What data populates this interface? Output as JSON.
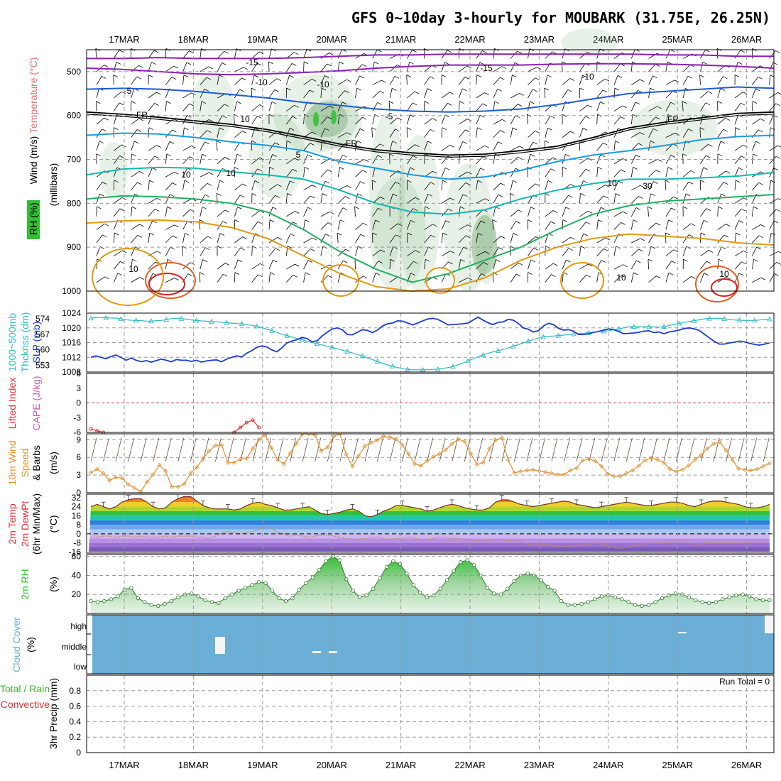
{
  "title": "GFS 0~10day 3-hourly for MOUBARK (31.75E, 26.25N)",
  "dates": [
    "17MAR",
    "18MAR",
    "19MAR",
    "20MAR",
    "21MAR",
    "22MAR",
    "23MAR",
    "24MAR",
    "25MAR",
    "26MAR"
  ],
  "colors": {
    "sounding_wind": "#000000",
    "temp_neg15": "#8a1fb0",
    "temp_neg10": "#8a1fb0",
    "temp_neg5": "#1e5bd0",
    "temp_fr": "#000000",
    "temp_5": "#1a9be0",
    "temp_10": "#10b8b0",
    "temp_15": "#20b060",
    "temp_20": "#e09a10",
    "temp_25": "#e06020",
    "temp_30": "#e02020",
    "rh_shade": "#7ab07a",
    "slp": "#1c3bd0",
    "thickness": "#30b8c0",
    "lifted_index": "#e03030",
    "cape": "#c060c0",
    "wind10m": "#e09030",
    "rh2m": "#40c040",
    "cloud": "#6baed6",
    "precip_total": "#30c030",
    "precip_conv": "#e03030"
  },
  "chart_data": [
    {
      "type": "heatmap",
      "panel": "sounding",
      "ylabel_parts": [
        "Wind (m/s)",
        "Temperature (°C)",
        "RH (%)",
        "(millibars)"
      ],
      "yticks": [
        500,
        600,
        700,
        800,
        900,
        1000
      ],
      "ylim": [
        450,
        1000
      ],
      "isotherm_labels": [
        "-15",
        "-15",
        "-10",
        "-10",
        "-10",
        "-5",
        "-5",
        "FR",
        "FR",
        "FR",
        "5",
        "10",
        "10"
      ],
      "rh_labels": [
        "10",
        "10",
        "10",
        "10",
        "30",
        "10"
      ],
      "isotherms": [
        {
          "temp": -15,
          "p": [
            470,
            470,
            468,
            470,
            470,
            470,
            468,
            465,
            462,
            462,
            460,
            460,
            460,
            460,
            460,
            460,
            462,
            462,
            465,
            465
          ]
        },
        {
          "temp": -10,
          "p": [
            492,
            495,
            500,
            505,
            507,
            505,
            502,
            498,
            492,
            488,
            485,
            485,
            485,
            483,
            482,
            482,
            483,
            485,
            488,
            492
          ]
        },
        {
          "temp": -5,
          "p": [
            540,
            538,
            540,
            545,
            552,
            560,
            570,
            577,
            585,
            590,
            592,
            590,
            585,
            575,
            562,
            550,
            545,
            540,
            535,
            538
          ]
        },
        {
          "temp": 0,
          "p": [
            592,
            597,
            604,
            612,
            620,
            632,
            648,
            665,
            678,
            685,
            690,
            688,
            680,
            670,
            650,
            628,
            615,
            605,
            595,
            592
          ]
        },
        {
          "temp": 5,
          "p": [
            645,
            640,
            642,
            650,
            660,
            668,
            680,
            705,
            720,
            735,
            745,
            740,
            725,
            705,
            690,
            680,
            668,
            655,
            648,
            645
          ]
        },
        {
          "temp": 10,
          "p": [
            735,
            722,
            718,
            720,
            728,
            735,
            745,
            770,
            800,
            820,
            825,
            815,
            790,
            770,
            755,
            745,
            745,
            742,
            738,
            730
          ]
        },
        {
          "temp": 15,
          "p": [
            790,
            783,
            785,
            790,
            800,
            820,
            860,
            910,
            950,
            980,
            960,
            930,
            900,
            860,
            825,
            805,
            795,
            790,
            785,
            780
          ]
        },
        {
          "temp": 20,
          "p": [
            845,
            840,
            838,
            842,
            855,
            880,
            920,
            960,
            990,
            1000,
            995,
            970,
            930,
            900,
            880,
            870,
            875,
            880,
            890,
            895
          ]
        }
      ]
    },
    {
      "type": "line",
      "panel": "slp_thickness",
      "ylabel": "1000~500mb Thcknss (dm) SLP (mb)",
      "yticks_left": [
        553,
        560,
        567,
        574
      ],
      "yticks_right": [
        1008,
        1012,
        1016,
        1020,
        1024
      ],
      "ylim_slp": [
        1008,
        1024
      ],
      "series": [
        {
          "name": "SLP",
          "values": [
            1012,
            1012.4,
            1012,
            1011.6,
            1012.2,
            1012.6,
            1012,
            1011.2,
            1011.8,
            1011.2,
            1010.8,
            1011.1,
            1010.7,
            1011.1,
            1011.5,
            1011.2,
            1010.8,
            1011.4,
            1011.2,
            1011.2,
            1010.9,
            1011.2,
            1010.7,
            1011,
            1011.2,
            1011.3,
            1010.8,
            1011.5,
            1012,
            1012.4,
            1012.1,
            1013.1,
            1013.8,
            1014.7,
            1015.1,
            1014.8,
            1014,
            1013.5,
            1014.6,
            1015.9,
            1016.4,
            1016.8,
            1017.4,
            1017.1,
            1016.2,
            1016.5,
            1017.8,
            1018.8,
            1019.7,
            1020,
            1019.5,
            1018.2,
            1018.1,
            1018.8,
            1019.5,
            1019.3,
            1018.7,
            1019.4,
            1020.5,
            1021.1,
            1021.3,
            1021.9,
            1021.8,
            1021.3,
            1020.8,
            1021.3,
            1021.9,
            1022.4,
            1022.6,
            1022.3,
            1021.6,
            1020.8,
            1020.9,
            1021,
            1021.1,
            1021.3,
            1022.1,
            1022.9,
            1022.1,
            1021.4,
            1020.9,
            1021.5,
            1021.6,
            1022.3,
            1022.1,
            1021.2,
            1020,
            1019.6,
            1018.9,
            1019.2,
            1020.5,
            1021.2,
            1020.9,
            1019.9,
            1019.4,
            1019.5,
            1019.1,
            1018.2,
            1018.2,
            1018.4,
            1018.8,
            1019,
            1019.4,
            1019.7,
            1019.5,
            1019,
            1018.4,
            1018.5,
            1018.6,
            1018.8,
            1019.1,
            1019.2,
            1018.7,
            1018.9,
            1018.4,
            1018.9,
            1019.1,
            1019.4,
            1019.8,
            1020,
            1019.7,
            1019.3,
            1018.3,
            1017.3,
            1016.3,
            1015.6,
            1015.6,
            1015.9,
            1016.1,
            1016.4,
            1016.2,
            1015.8,
            1015.5,
            1015.3,
            1015.6,
            1015.9
          ]
        },
        {
          "name": "Thickness",
          "values": [
            574.2,
            574.5,
            574.5,
            574.4,
            574.3,
            574.2,
            573.9,
            573.5,
            573.3,
            573.2,
            573.1,
            572.9,
            572.9,
            573.1,
            573.2,
            573.6,
            574,
            574.2,
            574,
            573.8,
            573.4,
            573.2,
            573,
            572.9,
            572.7,
            572.6,
            572.4,
            572.2,
            572,
            571.8,
            571.6,
            571.3,
            571,
            570.6,
            570,
            569.3,
            568.6,
            567.9,
            567,
            566.4,
            565.7,
            565.1,
            564.5,
            563.9,
            563.3,
            562.7,
            562.2,
            561.6,
            561.1,
            560.5,
            559.9,
            559.3,
            558.6,
            557.9,
            557.2,
            556.4,
            555.6,
            554.8,
            554,
            553.2,
            552.6,
            552,
            551.5,
            551.2,
            551,
            551,
            551,
            551.1,
            551.2,
            551.3,
            551.6,
            552,
            552.5,
            553.2,
            554,
            555,
            555.9,
            556.9,
            557.7,
            558.4,
            559.1,
            559.6,
            560.2,
            560.8,
            561.6,
            562.3,
            563.1,
            563.9,
            564.6,
            565.3,
            565.8,
            566.1,
            566.2,
            566.4,
            566.6,
            566.9,
            567.1,
            567.3,
            567.5,
            567.7,
            567.9,
            568.1,
            568.4,
            568.6,
            569,
            569.4,
            569.9,
            570.3,
            570.4,
            570.4,
            570.4,
            570.3,
            570.3,
            570.2,
            570.4,
            570.9,
            571.4,
            571.9,
            572.3,
            572.7,
            573.1,
            573.5,
            573.9,
            574.1,
            574.2,
            574.1,
            573.9,
            573.7,
            573.4,
            573.3,
            573.2,
            573.2,
            573.2,
            573.4,
            573.7,
            573.8
          ]
        }
      ]
    },
    {
      "type": "line",
      "panel": "lifted_cape",
      "ylabel": "Lifted Index CAPE (J/kg)",
      "yticks": [
        "6",
        "3",
        "0",
        "-3",
        "-6"
      ],
      "ylim": [
        -6,
        6
      ],
      "series": [
        {
          "name": "Lifted Index",
          "x_index": [
            0,
            1,
            2,
            23,
            24,
            25,
            26,
            27
          ],
          "values": [
            -5.3,
            -5.7,
            -6,
            -6,
            -5,
            -4,
            -3.5,
            -5
          ]
        }
      ]
    },
    {
      "type": "line",
      "panel": "wind10m",
      "ylabel": "10m Wind Speed & Barbs (m/s)",
      "yticks": [
        0,
        3,
        6,
        9
      ],
      "ylim": [
        0,
        10
      ],
      "series": [
        {
          "name": "10m Wind Speed",
          "values": [
            3.4,
            4,
            3.3,
            2.1,
            2.6,
            2.5,
            1.4,
            0.8,
            0.2,
            1.8,
            3.1,
            4.7,
            3.7,
            1,
            1,
            1.5,
            3.3,
            4.3,
            5.8,
            7.1,
            8,
            8.1,
            5.1,
            5.1,
            5.7,
            5.8,
            7.5,
            9,
            9.8,
            7.6,
            5.6,
            4.9,
            6.7,
            8.4,
            10,
            10,
            9.8,
            7.1,
            7.7,
            9.6,
            10,
            6.5,
            4.5,
            6.2,
            7.9,
            8.5,
            8.9,
            9.6,
            9.4,
            9.1,
            8.1,
            6.6,
            4.9,
            4.6,
            5.4,
            6.1,
            6.6,
            7.3,
            8.3,
            9.1,
            8.7,
            6.7,
            4.8,
            5.1,
            7.5,
            8.9,
            9.3,
            5.6,
            3.4,
            3.6,
            3.8,
            3.9,
            3.7,
            3.5,
            3.3,
            3.1,
            3.1,
            3.8,
            4.2,
            5.5,
            5.7,
            5.4,
            4.5,
            3.2,
            2.8,
            2.8,
            3.3,
            3.8,
            4.6,
            5.5,
            5.9,
            5.6,
            5.1,
            4,
            3.6,
            3.9,
            4.6,
            5.6,
            6.4,
            7.5,
            8.3,
            8.6,
            7.2,
            5.6,
            4.1,
            3.9,
            3.8,
            4,
            4.5,
            5
          ]
        }
      ]
    },
    {
      "type": "area",
      "panel": "temp2m",
      "ylabel": "2m Temp 2m DewPt (6hr Min/Max) (°C)",
      "yticks": [
        -16,
        -8,
        0,
        8,
        16,
        24,
        32
      ],
      "ylim": [
        -16,
        35
      ],
      "series": [
        {
          "name": "2m Temp",
          "values": [
            24,
            26,
            24,
            22,
            24,
            28,
            30,
            31,
            31,
            28,
            24,
            22,
            23,
            28,
            31,
            33,
            33,
            29,
            25,
            23,
            22,
            22,
            22,
            21,
            22,
            25,
            27,
            28,
            26,
            25,
            23,
            21,
            21,
            22,
            23,
            24,
            21,
            18,
            17,
            18,
            19,
            21,
            22,
            20,
            16,
            15,
            17,
            20,
            22,
            25,
            25,
            24,
            23,
            22,
            20,
            21,
            23,
            25,
            26,
            25,
            23,
            22,
            21,
            21,
            23,
            28,
            30,
            30,
            28,
            26,
            25,
            24,
            25,
            26,
            27,
            28,
            29,
            28,
            26,
            25,
            24,
            23,
            24,
            25,
            26,
            27,
            28,
            27,
            26,
            25,
            25,
            26,
            27,
            28,
            28,
            27,
            25,
            24,
            26,
            28,
            29,
            29,
            28,
            27,
            26,
            24,
            23,
            23,
            24,
            26
          ]
        },
        {
          "name": "2m DewPt",
          "values": [
            -3,
            -3,
            -2,
            -2,
            -3,
            -2,
            -2,
            -3,
            -2,
            -3,
            -3,
            -3,
            -2,
            -3,
            -2,
            -2,
            -2,
            -3,
            -3,
            -4,
            -2,
            1,
            2,
            1,
            0,
            1,
            2,
            4,
            6,
            5,
            1,
            0,
            -2,
            -1,
            -2,
            -3,
            -2,
            -1,
            -1,
            -2,
            -3,
            -4,
            -5,
            -5,
            -4,
            -3,
            -3,
            -4,
            -5,
            -4,
            -4,
            -3,
            -4,
            -5,
            -5,
            -4,
            -3,
            -3,
            -4,
            -4,
            -5,
            -5,
            -6,
            -7,
            -6,
            -5,
            -5,
            -6,
            -6,
            -7,
            -9,
            -10,
            -10,
            -9,
            -10,
            -11,
            -11,
            -11,
            -10,
            -10,
            -9,
            -8,
            -9,
            -10,
            -12,
            -13,
            -12,
            -11,
            -9,
            -9,
            -8,
            -8,
            -8,
            -7,
            -7,
            -7,
            -8,
            -9,
            -9,
            -8,
            -8,
            -8,
            -8,
            -8,
            -8,
            -8,
            -7,
            -7,
            -7,
            -7
          ]
        }
      ]
    },
    {
      "type": "area",
      "panel": "rh2m",
      "ylabel": "2m RH (%)",
      "yticks": [
        20,
        40,
        60
      ],
      "ylim": [
        0,
        62
      ],
      "series": [
        {
          "name": "2m RH",
          "values": [
            13,
            12,
            13,
            15,
            18,
            25,
            27,
            16,
            12,
            9,
            8,
            10,
            13,
            17,
            20,
            21,
            18,
            14,
            12,
            11,
            16,
            20,
            24,
            27,
            30,
            33,
            32,
            24,
            16,
            13,
            16,
            25,
            32,
            38,
            46,
            55,
            60,
            56,
            36,
            24,
            17,
            19,
            26,
            37,
            49,
            55,
            52,
            42,
            30,
            22,
            17,
            19,
            26,
            35,
            45,
            54,
            56,
            51,
            40,
            27,
            21,
            20,
            26,
            34,
            40,
            42,
            40,
            35,
            28,
            24,
            13,
            9,
            9,
            10,
            12,
            15,
            18,
            19,
            17,
            15,
            12,
            9,
            8,
            9,
            12,
            16,
            19,
            21,
            20,
            17,
            14,
            12,
            11,
            12,
            15,
            17,
            19,
            20,
            18,
            15,
            14,
            14
          ]
        }
      ]
    },
    {
      "type": "bar",
      "panel": "cloud",
      "ylabel": "Cloud Cover (%)",
      "yticks": [
        "high",
        "middle",
        "low"
      ],
      "ylim": [
        0,
        100
      ]
    },
    {
      "type": "bar",
      "panel": "precip",
      "ylabel": "Total / Rain Convective 3hr Precip (mm)",
      "ylabel_total": "Total / Rain",
      "ylabel_conv": "Convective",
      "ylabel_units": "3hr Precip (mm)",
      "yticks": [
        0,
        0.2,
        0.4,
        0.6,
        0.8
      ],
      "ylim": [
        0,
        1
      ],
      "run_total_label": "Run Total = 0"
    }
  ]
}
